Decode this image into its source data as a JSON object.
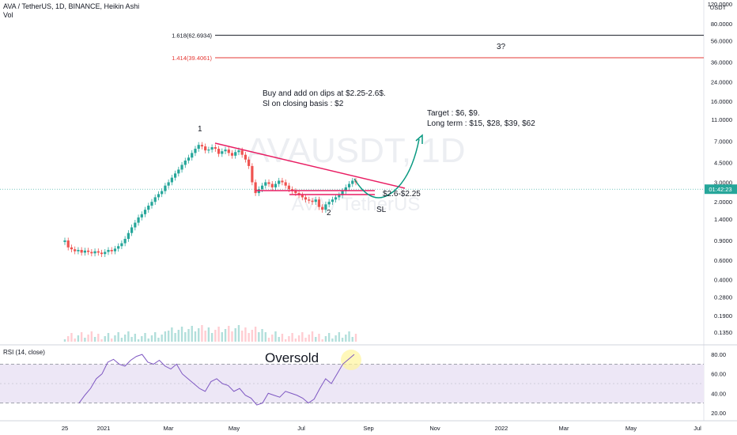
{
  "header": {
    "title": "AVA / TetherUS, 1D, BINANCE, Heikin Ashi",
    "volume_label": "Vol"
  },
  "watermark": {
    "symbol": "AVAUSDT, 1D",
    "name": "AVA / TetherUS"
  },
  "price_axis": {
    "currency": "USDT",
    "ticks": [
      "120.0000",
      "80.0000",
      "56.0000",
      "36.0000",
      "24.0000",
      "16.0000",
      "11.0000",
      "7.0000",
      "4.5000",
      "3.0000",
      "2.0000",
      "1.4000",
      "0.9000",
      "0.6000",
      "0.4000",
      "0.2800",
      "0.1900",
      "0.1350"
    ],
    "last_price_label": "01:42:23",
    "last_price": 2.6
  },
  "rsi": {
    "label": "RSI (14, close)",
    "ticks": [
      "80.00",
      "60.00",
      "40.00",
      "20.00"
    ],
    "upper": 70,
    "lower": 30,
    "middle": 50,
    "annotation": "Oversold"
  },
  "time_axis": [
    "25",
    "2021",
    "Mar",
    "May",
    "Jul",
    "Sep",
    "Nov",
    "2022",
    "Mar",
    "May",
    "Jul"
  ],
  "fib_levels": [
    {
      "label": "1.618(62.6934)",
      "value": 62.6934,
      "color": "#131722"
    },
    {
      "label": "1.414(39.4061)",
      "value": 39.4061,
      "color": "#e53935"
    }
  ],
  "annotations": {
    "buy_line1": "Buy and add on dips at $2.25-2.6$.",
    "buy_line2": "Sl on closing basis : $2",
    "target_line1": "Target : $6, $9.",
    "target_line2": "Long term : $15, $28, $39, $62",
    "point1": "1",
    "point2": "2",
    "point3": "3?",
    "zone": "$2.6-$2.25",
    "sl": "SL"
  },
  "colors": {
    "up": "#26a69a",
    "down": "#ef5350",
    "trendline": "#e91e63",
    "arrow": "#089981",
    "rsi_line": "#7e57c2",
    "rsi_band": "#ede7f6",
    "fib_black": "#131722",
    "fib_red": "#e53935",
    "last_line": "#26a69a"
  },
  "chart_data": {
    "type": "line",
    "series": [
      {
        "values": [
          0.9,
          0.78,
          0.75,
          0.72,
          0.74,
          0.7,
          0.73,
          0.71,
          0.69,
          0.72,
          0.7,
          0.68,
          0.71,
          0.74,
          0.72,
          0.76,
          0.8,
          0.85,
          0.93,
          1.05,
          1.18,
          1.3,
          1.45,
          1.55,
          1.7,
          1.85,
          2.0,
          2.2,
          2.35,
          2.5,
          2.8,
          3.0,
          3.3,
          3.6,
          3.9,
          4.3,
          4.7,
          5.0,
          5.5,
          6.0,
          6.5,
          6.3,
          5.8,
          5.9,
          6.2,
          6.0,
          5.4,
          5.7,
          5.9,
          5.5,
          5.2,
          5.6,
          5.8,
          5.3,
          4.8,
          4.2,
          3.0,
          2.4,
          2.6,
          2.8,
          3.0,
          2.9,
          2.7,
          2.9,
          3.1,
          3.0,
          2.8,
          2.6,
          2.5,
          2.4,
          2.3,
          2.2,
          2.1,
          2.05,
          2.0,
          2.1,
          1.8,
          1.7,
          1.9,
          2.0,
          2.1,
          2.2,
          2.3,
          2.5,
          2.7,
          2.9,
          3.1,
          3.0
        ]
      }
    ],
    "rsi_values": [
      30,
      38,
      45,
      55,
      60,
      72,
      75,
      70,
      68,
      74,
      78,
      80,
      72,
      70,
      74,
      68,
      65,
      70,
      60,
      55,
      50,
      45,
      42,
      52,
      55,
      50,
      48,
      42,
      45,
      38,
      35,
      28,
      30,
      40,
      38,
      36,
      42,
      40,
      38,
      35,
      30,
      34,
      45,
      55,
      50,
      60,
      70,
      75,
      80
    ],
    "y_scale": "log",
    "ylim": [
      0.12,
      130
    ],
    "xlabel": "",
    "ylabel": ""
  }
}
